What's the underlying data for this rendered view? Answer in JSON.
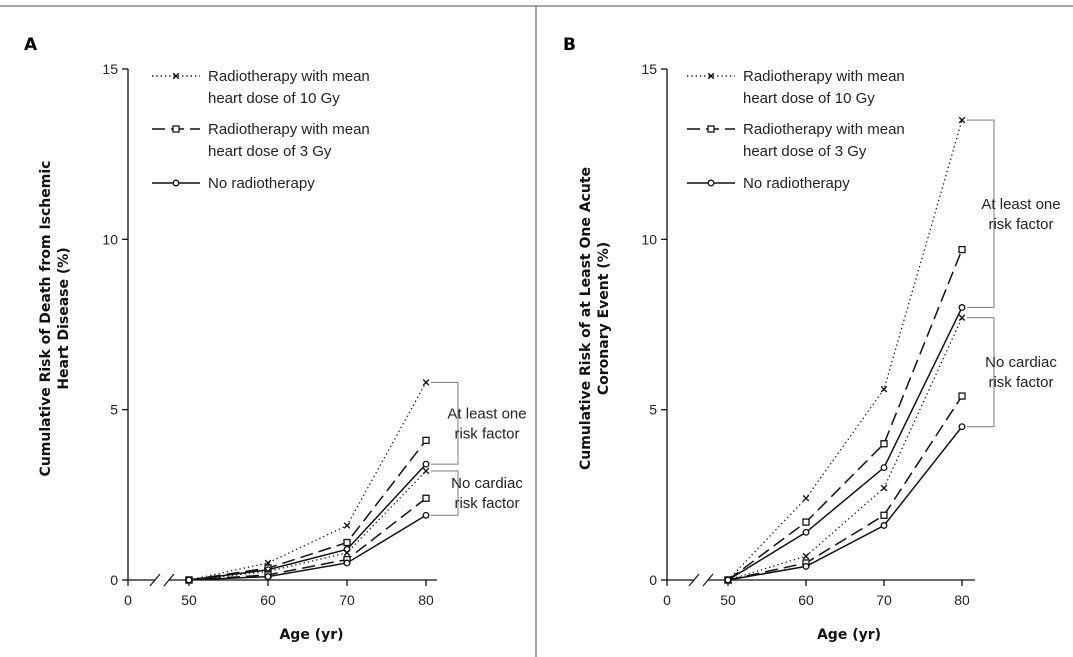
{
  "chart_data": [
    {
      "panel_label": "A",
      "type": "line",
      "xlabel": "Age (yr)",
      "ylabel_lines": [
        "Cumulative Risk of Death from Ischemic",
        "Heart Disease (%)"
      ],
      "x_ticks": [
        0,
        50,
        60,
        70,
        80
      ],
      "y_ticks": [
        0,
        5,
        10,
        15
      ],
      "ylim": [
        0,
        15
      ],
      "axis_break": true,
      "legend": [
        {
          "style": "dotted",
          "marker": "x",
          "lines": [
            "Radiotherapy with mean",
            "heart dose of 10 Gy"
          ]
        },
        {
          "style": "dashed",
          "marker": "square",
          "lines": [
            "Radiotherapy with mean",
            "heart dose of 3 Gy"
          ]
        },
        {
          "style": "solid",
          "marker": "circle",
          "lines": [
            "No radiotherapy"
          ]
        }
      ],
      "groups": [
        {
          "label_lines": [
            "At least one",
            "risk factor"
          ]
        },
        {
          "label_lines": [
            "No cardiac",
            "risk factor"
          ]
        }
      ],
      "x": [
        50,
        60,
        70,
        80
      ],
      "series": [
        {
          "group": 0,
          "style": "dotted",
          "marker": "x",
          "values": [
            0,
            0.5,
            1.6,
            5.8
          ]
        },
        {
          "group": 0,
          "style": "dashed",
          "marker": "square",
          "values": [
            0,
            0.35,
            1.1,
            4.1
          ]
        },
        {
          "group": 0,
          "style": "solid",
          "marker": "circle",
          "values": [
            0,
            0.3,
            0.9,
            3.4
          ]
        },
        {
          "group": 1,
          "style": "dotted",
          "marker": "x",
          "values": [
            0,
            0.25,
            0.8,
            3.2
          ]
        },
        {
          "group": 1,
          "style": "dashed",
          "marker": "square",
          "values": [
            0,
            0.15,
            0.6,
            2.4
          ]
        },
        {
          "group": 1,
          "style": "solid",
          "marker": "circle",
          "values": [
            0,
            0.1,
            0.5,
            1.9
          ]
        }
      ]
    },
    {
      "panel_label": "B",
      "type": "line",
      "xlabel": "Age (yr)",
      "ylabel_lines": [
        "Cumulative Risk of at Least One Acute",
        "Coronary Event (%)"
      ],
      "x_ticks": [
        0,
        50,
        60,
        70,
        80
      ],
      "y_ticks": [
        0,
        5,
        10,
        15
      ],
      "ylim": [
        0,
        15
      ],
      "axis_break": true,
      "legend": [
        {
          "style": "dotted",
          "marker": "x",
          "lines": [
            "Radiotherapy with mean",
            "heart dose of 10 Gy"
          ]
        },
        {
          "style": "dashed",
          "marker": "square",
          "lines": [
            "Radiotherapy with mean",
            "heart dose of 3 Gy"
          ]
        },
        {
          "style": "solid",
          "marker": "circle",
          "lines": [
            "No radiotherapy"
          ]
        }
      ],
      "groups": [
        {
          "label_lines": [
            "At least one",
            "risk factor"
          ]
        },
        {
          "label_lines": [
            "No cardiac",
            "risk factor"
          ]
        }
      ],
      "x": [
        50,
        60,
        70,
        80
      ],
      "series": [
        {
          "group": 0,
          "style": "dotted",
          "marker": "x",
          "values": [
            0,
            2.4,
            5.6,
            13.5
          ]
        },
        {
          "group": 0,
          "style": "dashed",
          "marker": "square",
          "values": [
            0,
            1.7,
            4.0,
            9.7
          ]
        },
        {
          "group": 0,
          "style": "solid",
          "marker": "circle",
          "values": [
            0,
            1.4,
            3.3,
            8.0
          ]
        },
        {
          "group": 1,
          "style": "dotted",
          "marker": "x",
          "values": [
            0,
            0.7,
            2.7,
            7.7
          ]
        },
        {
          "group": 1,
          "style": "dashed",
          "marker": "square",
          "values": [
            0,
            0.5,
            1.9,
            5.4
          ]
        },
        {
          "group": 1,
          "style": "solid",
          "marker": "circle",
          "values": [
            0,
            0.4,
            1.6,
            4.5
          ]
        }
      ]
    }
  ]
}
